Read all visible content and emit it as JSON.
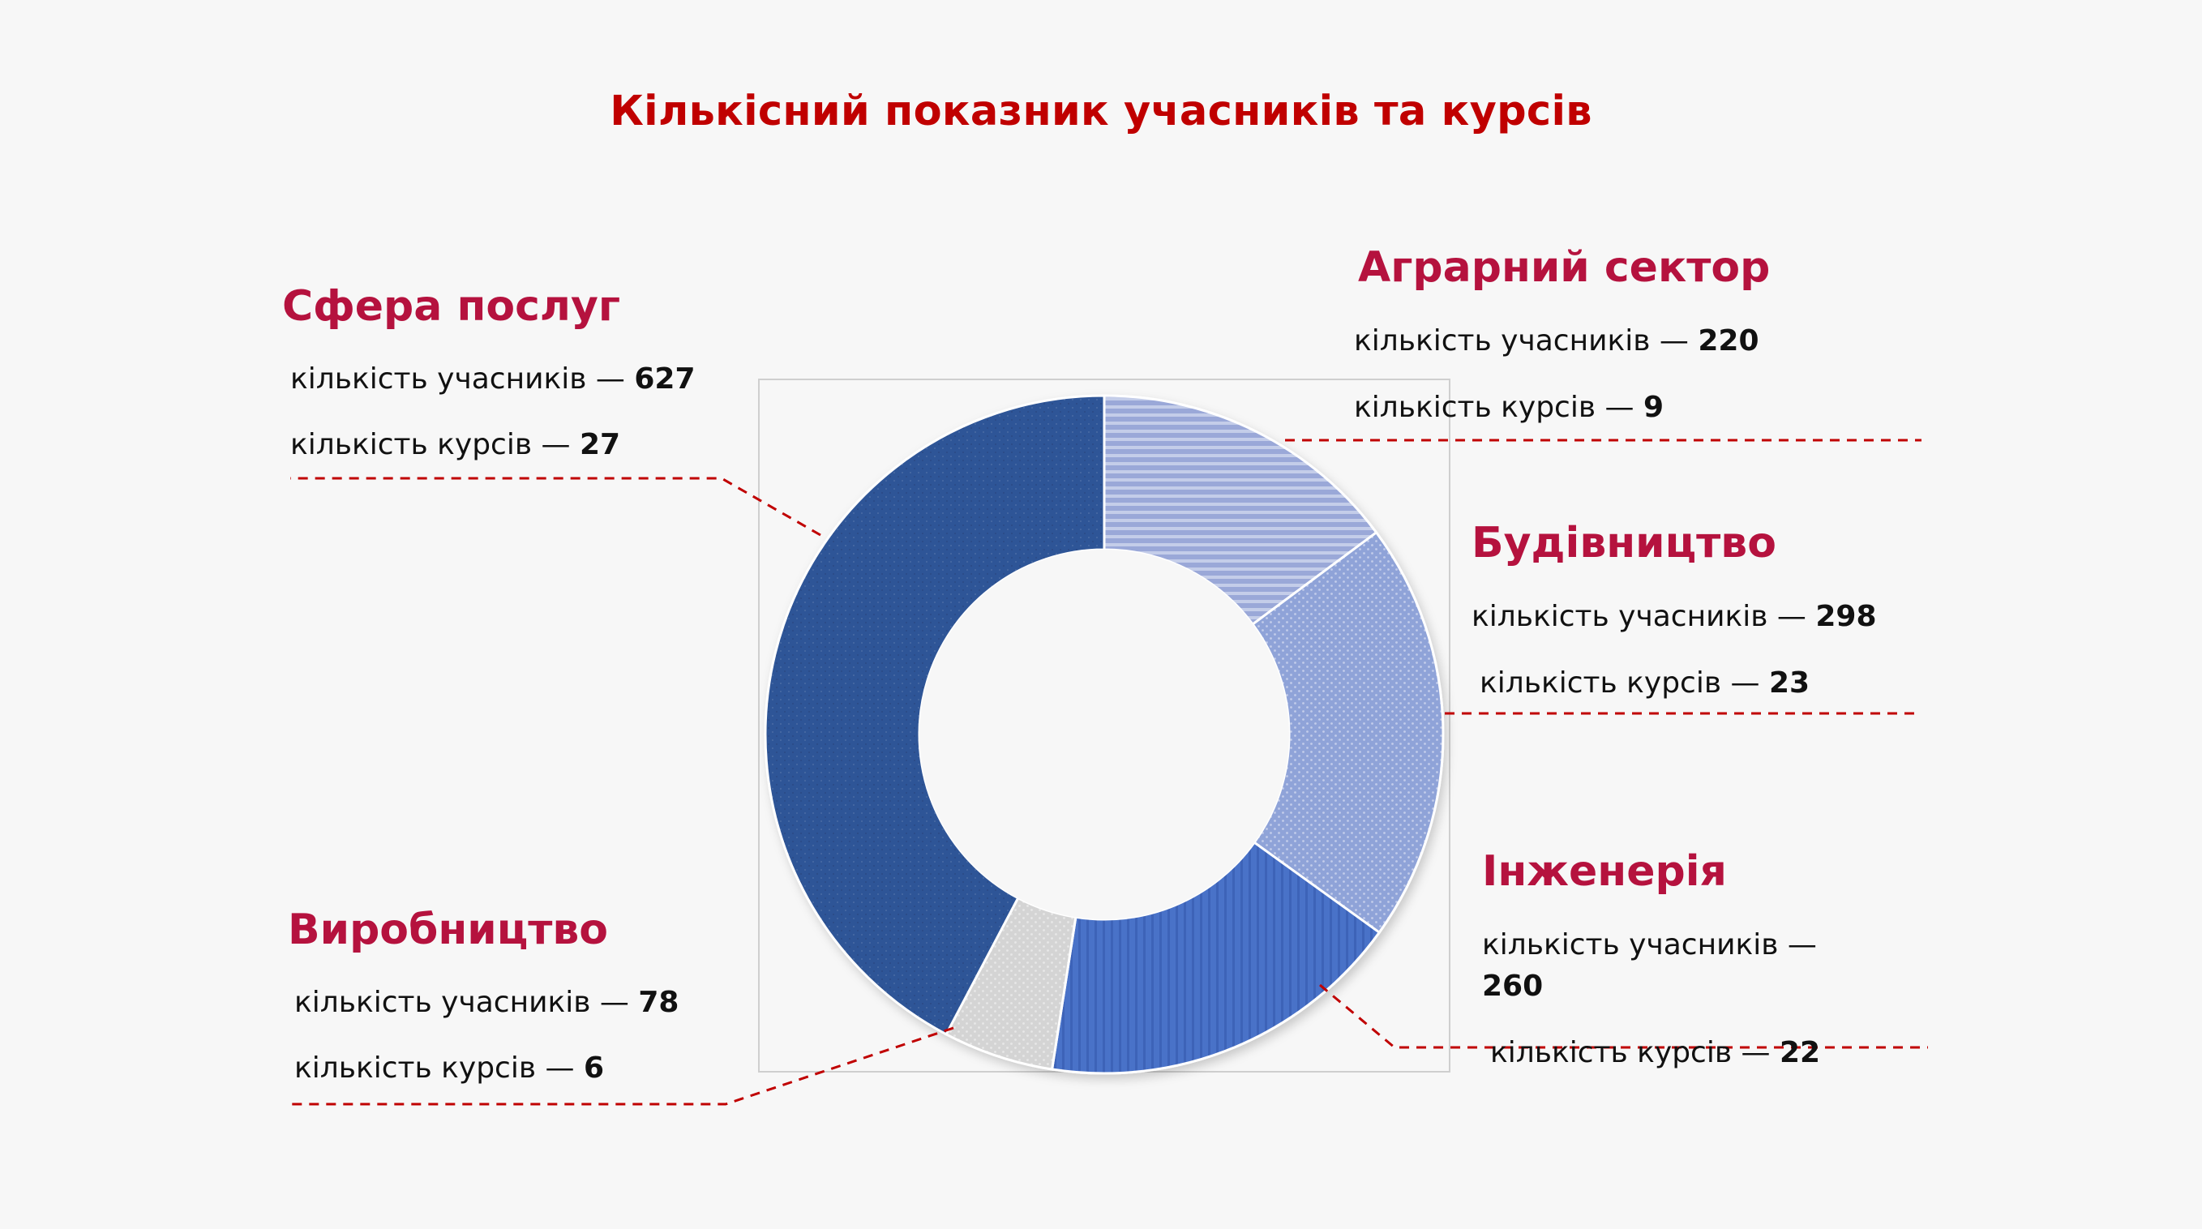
{
  "chart_data": {
    "type": "pie",
    "title": "Кількісний показник учасників та курсів",
    "series_metric_label": "кількість учасників",
    "secondary_metric_label": "кількість курсів",
    "separator": "—",
    "categories": [
      {
        "id": "agri",
        "name": "Аграрний сектор",
        "participants": "220",
        "courses": "9",
        "color": "#9aa8d8",
        "pattern": "hstripes"
      },
      {
        "id": "build",
        "name": "Будівництво",
        "participants": "298",
        "courses": "23",
        "color": "#8fa3d8",
        "pattern": "dots"
      },
      {
        "id": "eng",
        "name": "Інженерія",
        "participants": "260",
        "courses": "22",
        "color": "#4a72c8",
        "pattern": "vstripes"
      },
      {
        "id": "manuf",
        "name": "Виробництво",
        "participants": "78",
        "courses": "6",
        "color": "#d4d4d4",
        "pattern": "dots"
      },
      {
        "id": "serv",
        "name": "Сфера послуг",
        "participants": "627",
        "courses": "27",
        "color": "#2f5597",
        "pattern": "finedots"
      }
    ],
    "values": [
      220,
      298,
      260,
      78,
      627
    ],
    "legend": "none",
    "leader_color": "#c00000"
  }
}
